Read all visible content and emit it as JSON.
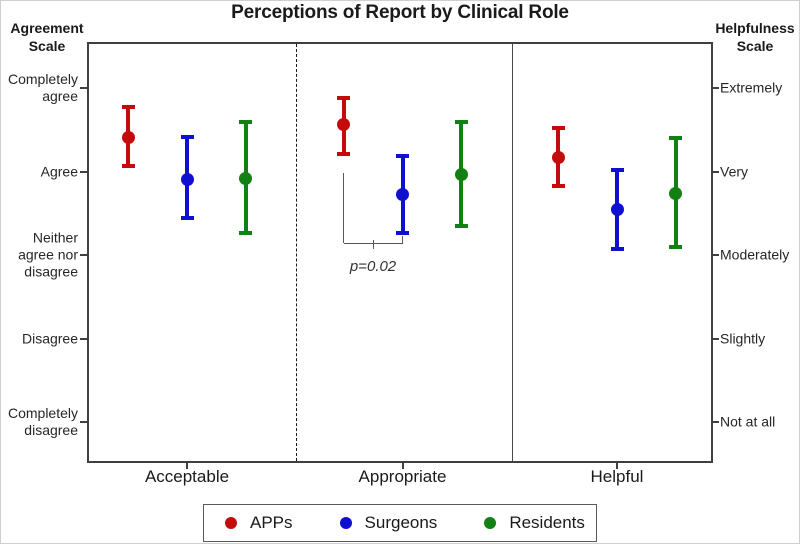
{
  "title": "Perceptions of Report by Clinical Role",
  "left_axis": {
    "header": "Agreement\nScale",
    "labels": [
      "Completely\nagree",
      "Agree",
      "Neither\nagree nor\ndisagree",
      "Disagree",
      "Completely\ndisagree"
    ]
  },
  "right_axis": {
    "header": "Helpfulness\nScale",
    "labels": [
      "Extremely",
      "Very",
      "Moderately",
      "Slightly",
      "Not at all"
    ]
  },
  "legend": {
    "items": [
      {
        "label": "APPs",
        "color": "#c40a0a"
      },
      {
        "label": "Surgeons",
        "color": "#0f0fd0"
      },
      {
        "label": "Residents",
        "color": "#128012"
      }
    ]
  },
  "chart_data": {
    "type": "scatter",
    "title": "Perceptions of Report by Clinical Role",
    "categories": [
      "Acceptable",
      "Appropriate",
      "Helpful"
    ],
    "ylim": [
      1,
      5
    ],
    "grid": false,
    "legend_position": "bottom",
    "left_scale": {
      "name": "Agreement Scale",
      "tick_values": [
        5,
        4,
        3,
        2,
        1
      ],
      "tick_labels": [
        "Completely agree",
        "Agree",
        "Neither agree nor disagree",
        "Disagree",
        "Completely disagree"
      ]
    },
    "right_scale": {
      "name": "Helpfulness Scale",
      "tick_values": [
        5,
        4,
        3,
        2,
        1
      ],
      "tick_labels": [
        "Extremely",
        "Very",
        "Moderately",
        "Slightly",
        "Not at all"
      ]
    },
    "series": [
      {
        "name": "APPs",
        "color": "#c40a0a",
        "values": [
          {
            "category": "Acceptable",
            "mean": 4.41,
            "ci_low": 4.06,
            "ci_high": 4.77
          },
          {
            "category": "Appropriate",
            "mean": 4.56,
            "ci_low": 4.21,
            "ci_high": 4.88
          },
          {
            "category": "Helpful",
            "mean": 4.17,
            "ci_low": 3.83,
            "ci_high": 4.52
          }
        ]
      },
      {
        "name": "Surgeons",
        "color": "#0f0fd0",
        "values": [
          {
            "category": "Acceptable",
            "mean": 3.91,
            "ci_low": 3.44,
            "ci_high": 4.41
          },
          {
            "category": "Appropriate",
            "mean": 3.73,
            "ci_low": 3.26,
            "ci_high": 4.18
          },
          {
            "category": "Helpful",
            "mean": 3.54,
            "ci_low": 3.07,
            "ci_high": 4.02
          }
        ]
      },
      {
        "name": "Residents",
        "color": "#128012",
        "values": [
          {
            "category": "Acceptable",
            "mean": 3.92,
            "ci_low": 3.26,
            "ci_high": 4.59
          },
          {
            "category": "Appropriate",
            "mean": 3.97,
            "ci_low": 3.35,
            "ci_high": 4.59
          },
          {
            "category": "Helpful",
            "mean": 3.74,
            "ci_low": 3.1,
            "ci_high": 4.4
          }
        ]
      }
    ],
    "annotation": {
      "label": "p=0.02",
      "panel": "Appropriate",
      "between": [
        "APPs",
        "Surgeons"
      ]
    }
  }
}
